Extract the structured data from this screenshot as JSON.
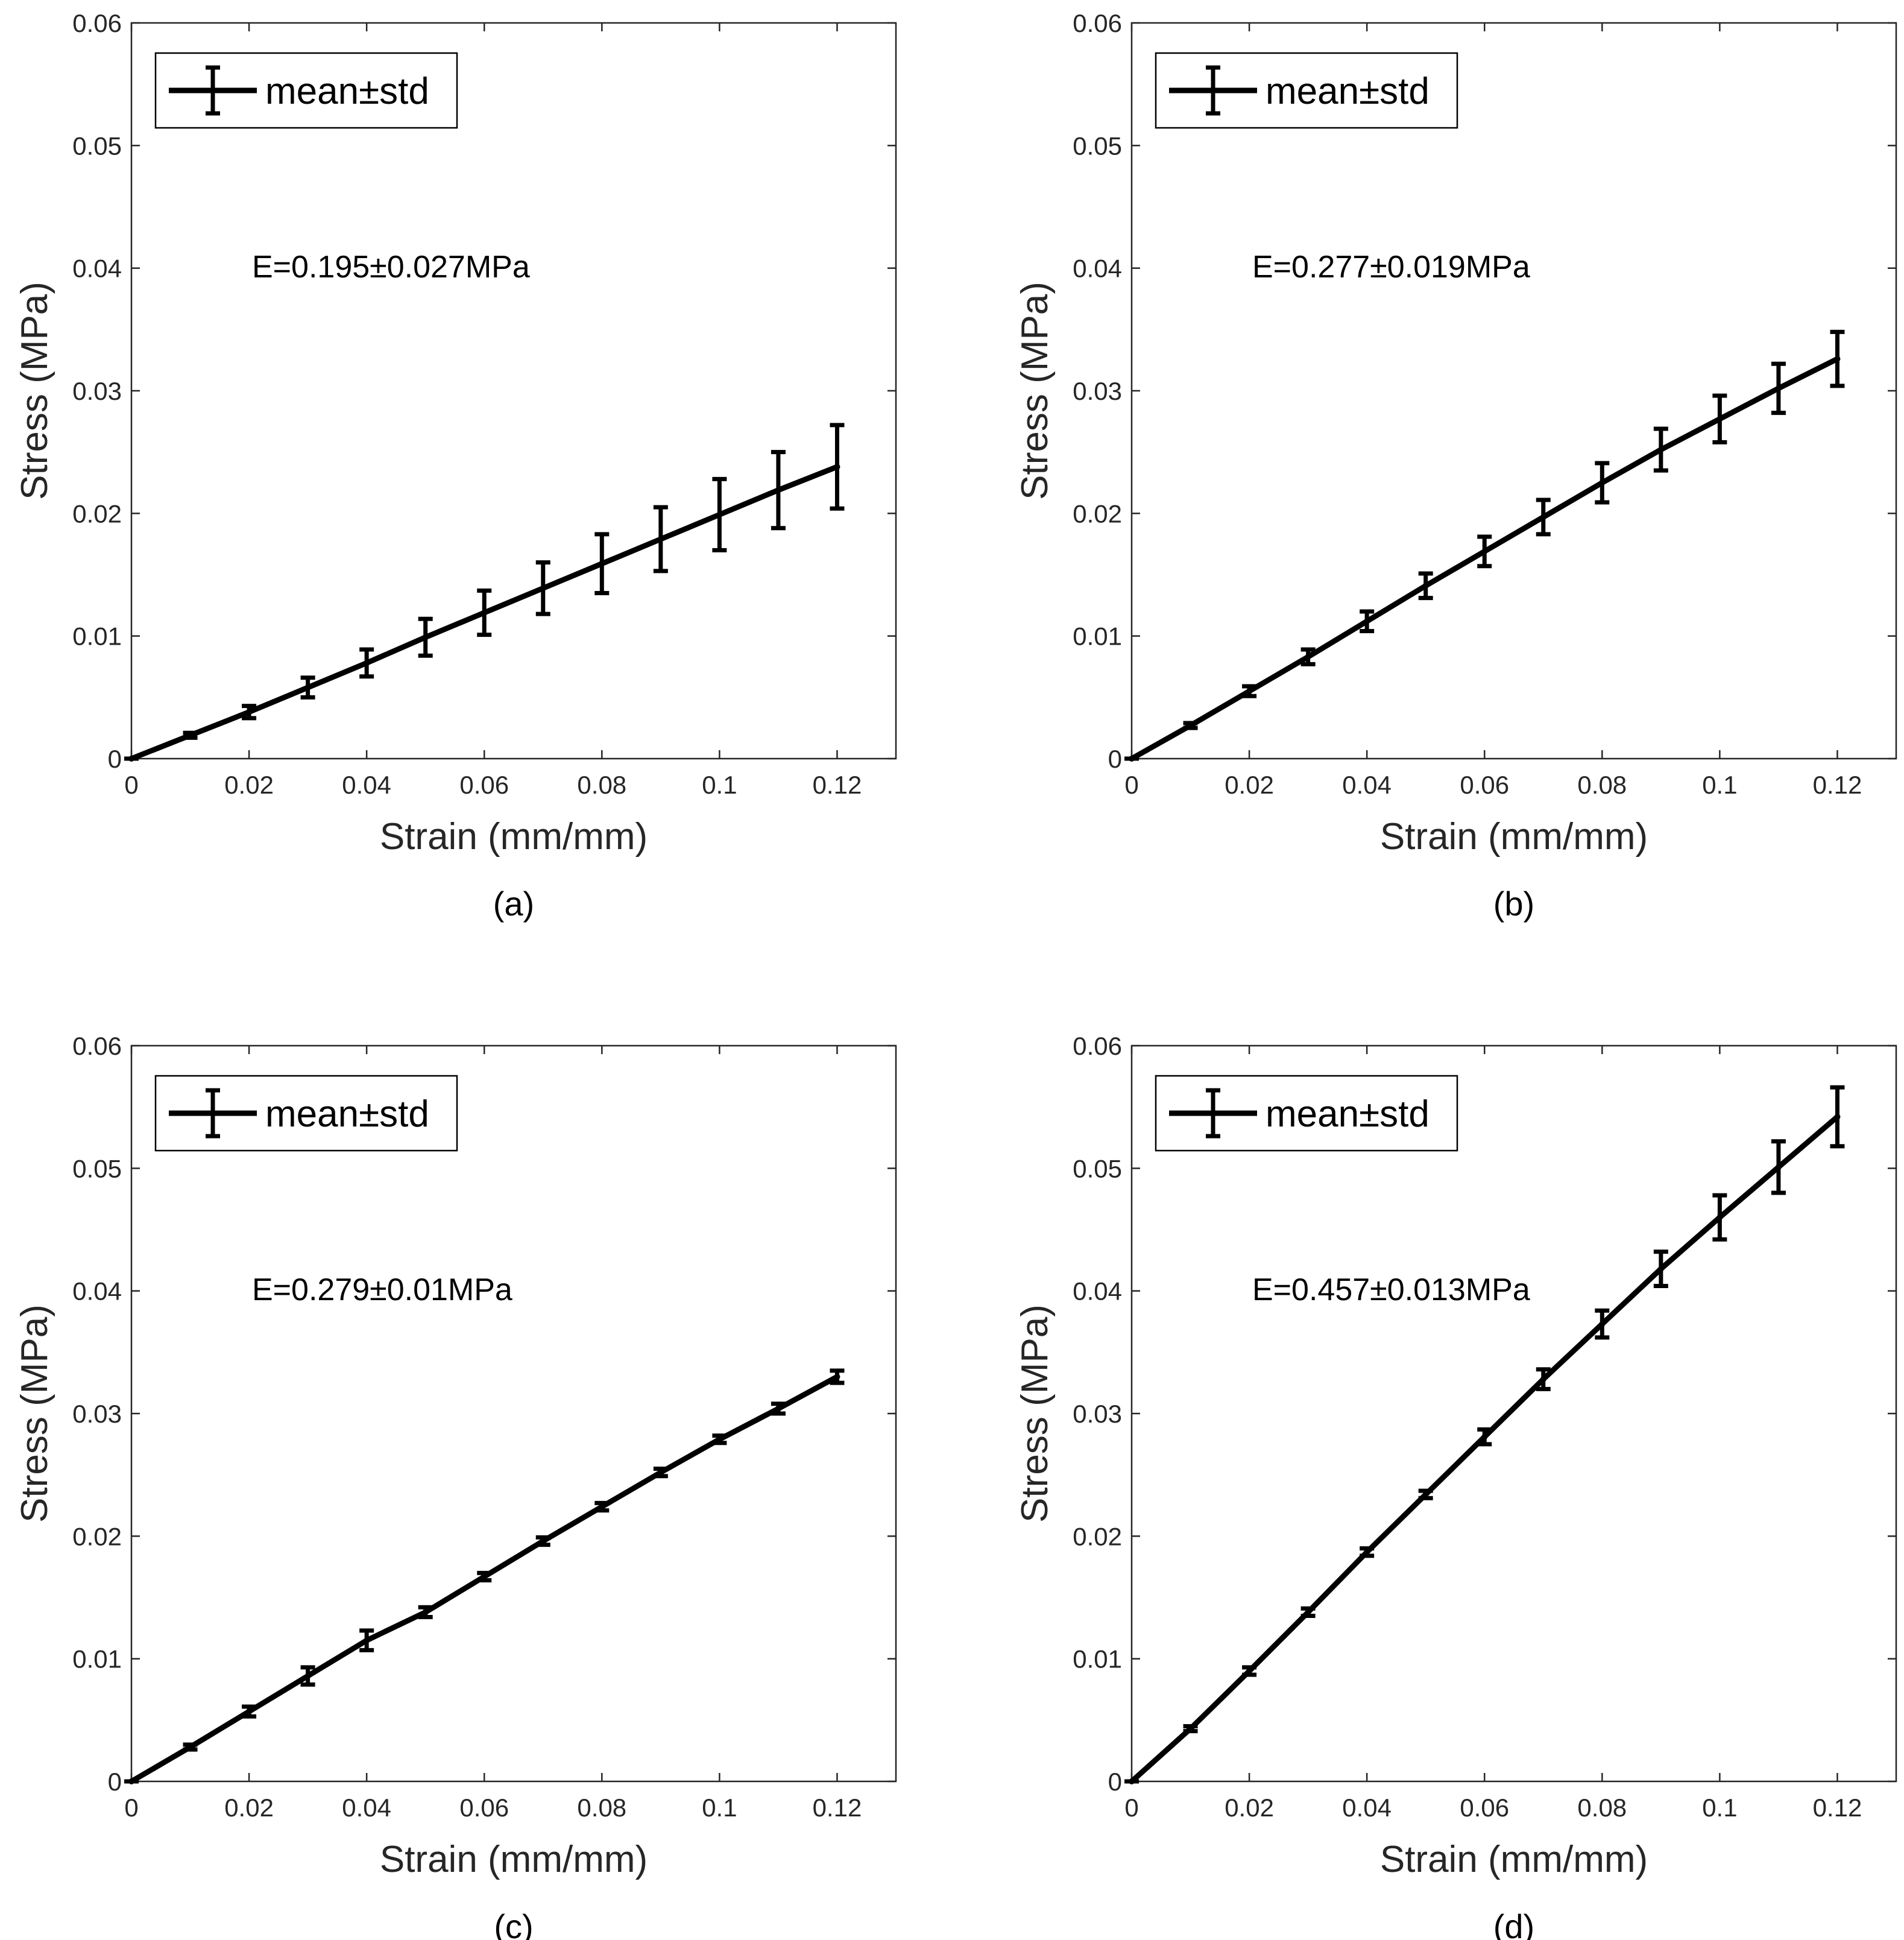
{
  "colors": {
    "line": "#000000",
    "axis": "#262626",
    "background": "#ffffff"
  },
  "chart_data": [
    {
      "type": "line",
      "caption": "(a)",
      "xlabel": "Strain (mm/mm)",
      "ylabel": "Stress (MPa)",
      "xlim": [
        0,
        0.13
      ],
      "ylim": [
        0,
        0.06
      ],
      "xticks": [
        0,
        0.02,
        0.04,
        0.06,
        0.08,
        0.1,
        0.12
      ],
      "xtick_labels": [
        "0",
        "0.02",
        "0.04",
        "0.06",
        "0.08",
        "0.1",
        "0.12"
      ],
      "yticks": [
        0,
        0.01,
        0.02,
        0.03,
        0.04,
        0.05,
        0.06
      ],
      "ytick_labels": [
        "0",
        "0.01",
        "0.02",
        "0.03",
        "0.04",
        "0.05",
        "0.06"
      ],
      "legend": [
        "mean±std"
      ],
      "legend_position": "top-left",
      "annotation": "E=0.195±0.027MPa",
      "series": [
        {
          "name": "mean±std",
          "x": [
            0,
            0.01,
            0.02,
            0.03,
            0.04,
            0.05,
            0.06,
            0.07,
            0.08,
            0.09,
            0.1,
            0.11,
            0.12
          ],
          "y": [
            0,
            0.0019,
            0.0038,
            0.0058,
            0.0078,
            0.0099,
            0.0119,
            0.0139,
            0.0159,
            0.0179,
            0.0199,
            0.0219,
            0.0238
          ],
          "err": [
            0,
            0.0002,
            0.0005,
            0.0008,
            0.0011,
            0.0015,
            0.0018,
            0.0021,
            0.0024,
            0.0026,
            0.0029,
            0.0031,
            0.0034
          ]
        }
      ]
    },
    {
      "type": "line",
      "caption": "(b)",
      "xlabel": "Strain (mm/mm)",
      "ylabel": "Stress (MPa)",
      "xlim": [
        0,
        0.13
      ],
      "ylim": [
        0,
        0.06
      ],
      "xticks": [
        0,
        0.02,
        0.04,
        0.06,
        0.08,
        0.1,
        0.12
      ],
      "xtick_labels": [
        "0",
        "0.02",
        "0.04",
        "0.06",
        "0.08",
        "0.1",
        "0.12"
      ],
      "yticks": [
        0,
        0.01,
        0.02,
        0.03,
        0.04,
        0.05,
        0.06
      ],
      "ytick_labels": [
        "0",
        "0.01",
        "0.02",
        "0.03",
        "0.04",
        "0.05",
        "0.06"
      ],
      "legend": [
        "mean±std"
      ],
      "legend_position": "top-left",
      "annotation": "E=0.277±0.019MPa",
      "series": [
        {
          "name": "mean±std",
          "x": [
            0,
            0.01,
            0.02,
            0.03,
            0.04,
            0.05,
            0.06,
            0.07,
            0.08,
            0.09,
            0.1,
            0.11,
            0.12
          ],
          "y": [
            0,
            0.0027,
            0.0055,
            0.0083,
            0.0112,
            0.0141,
            0.0169,
            0.0197,
            0.0225,
            0.0252,
            0.0277,
            0.0302,
            0.0326
          ],
          "err": [
            0,
            0.0002,
            0.0004,
            0.0006,
            0.0008,
            0.001,
            0.0012,
            0.0014,
            0.0016,
            0.0017,
            0.0019,
            0.002,
            0.0022
          ]
        }
      ]
    },
    {
      "type": "line",
      "caption": "(c)",
      "xlabel": "Strain (mm/mm)",
      "ylabel": "Stress (MPa)",
      "xlim": [
        0,
        0.13
      ],
      "ylim": [
        0,
        0.06
      ],
      "xticks": [
        0,
        0.02,
        0.04,
        0.06,
        0.08,
        0.1,
        0.12
      ],
      "xtick_labels": [
        "0",
        "0.02",
        "0.04",
        "0.06",
        "0.08",
        "0.1",
        "0.12"
      ],
      "yticks": [
        0,
        0.01,
        0.02,
        0.03,
        0.04,
        0.05,
        0.06
      ],
      "ytick_labels": [
        "0",
        "0.01",
        "0.02",
        "0.03",
        "0.04",
        "0.05",
        "0.06"
      ],
      "legend": [
        "mean±std"
      ],
      "legend_position": "top-left",
      "annotation": "E=0.279±0.01MPa",
      "series": [
        {
          "name": "mean±std",
          "x": [
            0,
            0.01,
            0.02,
            0.03,
            0.04,
            0.05,
            0.06,
            0.07,
            0.08,
            0.09,
            0.1,
            0.11,
            0.12
          ],
          "y": [
            0,
            0.0028,
            0.0057,
            0.0086,
            0.0115,
            0.0138,
            0.0167,
            0.0196,
            0.0224,
            0.0252,
            0.0279,
            0.0304,
            0.033
          ],
          "err": [
            0,
            0.0002,
            0.0004,
            0.0007,
            0.0008,
            0.0004,
            0.0003,
            0.0003,
            0.0003,
            0.0003,
            0.0003,
            0.0004,
            0.0005
          ]
        }
      ]
    },
    {
      "type": "line",
      "caption": "(d)",
      "xlabel": "Strain (mm/mm)",
      "ylabel": "Stress (MPa)",
      "xlim": [
        0,
        0.13
      ],
      "ylim": [
        0,
        0.06
      ],
      "xticks": [
        0,
        0.02,
        0.04,
        0.06,
        0.08,
        0.1,
        0.12
      ],
      "xtick_labels": [
        "0",
        "0.02",
        "0.04",
        "0.06",
        "0.08",
        "0.1",
        "0.12"
      ],
      "yticks": [
        0,
        0.01,
        0.02,
        0.03,
        0.04,
        0.05,
        0.06
      ],
      "ytick_labels": [
        "0",
        "0.01",
        "0.02",
        "0.03",
        "0.04",
        "0.05",
        "0.06"
      ],
      "legend": [
        "mean±std"
      ],
      "legend_position": "top-left",
      "annotation": "E=0.457±0.013MPa",
      "series": [
        {
          "name": "mean±std",
          "x": [
            0,
            0.01,
            0.02,
            0.03,
            0.04,
            0.05,
            0.06,
            0.07,
            0.08,
            0.09,
            0.1,
            0.11,
            0.12
          ],
          "y": [
            0,
            0.0043,
            0.009,
            0.0138,
            0.0187,
            0.0234,
            0.0281,
            0.0328,
            0.0373,
            0.0418,
            0.046,
            0.0501,
            0.0542
          ],
          "err": [
            0,
            0.0002,
            0.0003,
            0.0003,
            0.0003,
            0.0003,
            0.0006,
            0.0008,
            0.0011,
            0.0014,
            0.0018,
            0.0021,
            0.0024
          ]
        }
      ]
    }
  ]
}
